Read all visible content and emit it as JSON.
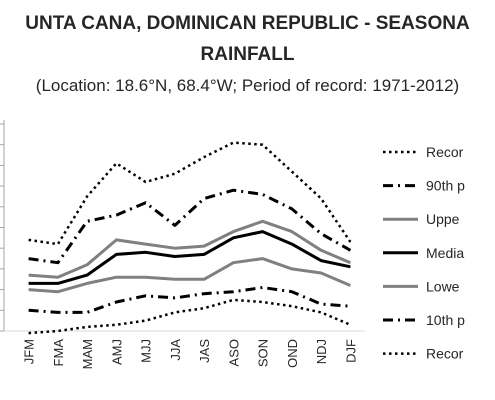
{
  "chart_data": {
    "type": "line",
    "title_line1": "UNTA CANA, DOMINICAN REPUBLIC - SEASONA",
    "title_line2": "RAINFALL",
    "subtitle": "(Location: 18.6°N, 68.4°W; Period of record: 1971-2012)",
    "categories": [
      "JFM",
      "FMA",
      "MAM",
      "AMJ",
      "MJJ",
      "JJA",
      "JAS",
      "ASO",
      "SON",
      "OND",
      "NDJ",
      "DJF"
    ],
    "ylim": [
      0,
      1000
    ],
    "grid": false,
    "legend_position": "right",
    "series": [
      {
        "name": "Recor",
        "color": "#000000",
        "style": "dotted",
        "width": 2.5,
        "values": [
          440,
          420,
          650,
          810,
          720,
          760,
          840,
          910,
          900,
          770,
          640,
          430
        ]
      },
      {
        "name": "90th p",
        "color": "#000000",
        "style": "dashdot",
        "width": 3,
        "values": [
          350,
          330,
          530,
          560,
          620,
          510,
          640,
          680,
          660,
          590,
          470,
          390
        ]
      },
      {
        "name": "Uppe",
        "color": "#808080",
        "style": "solid",
        "width": 3,
        "values": [
          270,
          260,
          320,
          440,
          420,
          400,
          410,
          480,
          530,
          480,
          390,
          330
        ]
      },
      {
        "name": "Media",
        "color": "#000000",
        "style": "solid",
        "width": 3,
        "values": [
          230,
          230,
          270,
          370,
          380,
          360,
          370,
          450,
          480,
          420,
          340,
          310
        ]
      },
      {
        "name": "Lowe",
        "color": "#808080",
        "style": "solid",
        "width": 3,
        "values": [
          200,
          190,
          230,
          260,
          260,
          250,
          250,
          330,
          350,
          300,
          280,
          220
        ]
      },
      {
        "name": "10th p",
        "color": "#000000",
        "style": "dashdot",
        "width": 3,
        "values": [
          100,
          90,
          90,
          140,
          170,
          160,
          180,
          190,
          210,
          190,
          130,
          120
        ]
      },
      {
        "name": "Recor",
        "color": "#000000",
        "style": "dotted",
        "width": 2.5,
        "values": [
          -10,
          0,
          20,
          30,
          50,
          90,
          110,
          150,
          140,
          120,
          90,
          30
        ]
      }
    ]
  }
}
